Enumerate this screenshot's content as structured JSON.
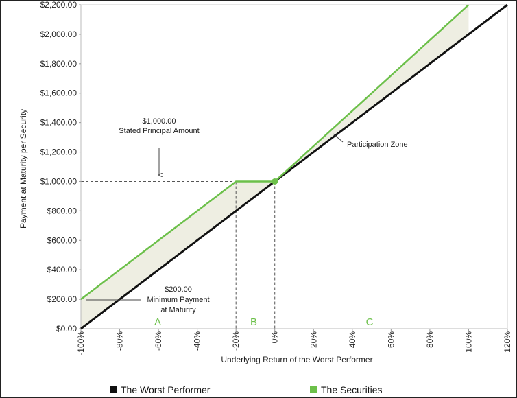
{
  "chart_data": {
    "type": "line",
    "xlabel": "Underlying Return of the Worst Performer",
    "ylabel": "Payment at Maturity per Security",
    "xlim": [
      -100,
      120
    ],
    "ylim": [
      0,
      2200
    ],
    "x_ticks": [
      "-100%",
      "-80%",
      "-60%",
      "-40%",
      "-20%",
      "0%",
      "20%",
      "40%",
      "60%",
      "80%",
      "100%",
      "120%"
    ],
    "y_ticks": [
      "$0.00",
      "$200.00",
      "$400.00",
      "$600.00",
      "$800.00",
      "$1,000.00",
      "$1,200.00",
      "$1,400.00",
      "$1,600.00",
      "$1,800.00",
      "$2,000.00",
      "$2,200.00"
    ],
    "series": [
      {
        "name": "The Worst Performer",
        "color": "#111111",
        "x": [
          -100,
          120
        ],
        "y": [
          0,
          2200
        ]
      },
      {
        "name": "The Securities",
        "color": "#6cc04a",
        "x": [
          -100,
          -20,
          0,
          100
        ],
        "y": [
          200,
          1000,
          1000,
          2200
        ]
      }
    ],
    "annotations": {
      "principal": {
        "value": "$1,000.00",
        "text": "Stated Principal Amount"
      },
      "minimum": {
        "value": "$200.00",
        "line1": "Minimum Payment",
        "line2": "at Maturity"
      },
      "participation": "Participation Zone"
    },
    "zones": [
      "A",
      "B",
      "C"
    ],
    "grid": false,
    "legend_position": "bottom"
  }
}
